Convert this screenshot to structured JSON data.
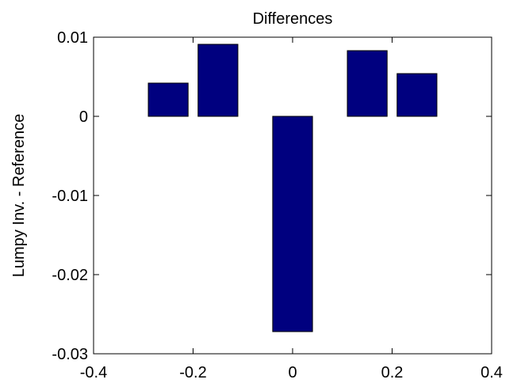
{
  "chart_data": {
    "type": "bar",
    "title": "Differences",
    "xlabel": "",
    "ylabel": "Lumpy Inv. - Reference",
    "x": [
      -0.25,
      -0.15,
      0.0,
      0.15,
      0.25
    ],
    "values": [
      0.0042,
      0.0091,
      -0.0272,
      0.0083,
      0.0054
    ],
    "bar_width_data": 0.08,
    "xlim": [
      -0.4,
      0.4
    ],
    "ylim": [
      -0.03,
      0.01
    ],
    "xticks": [
      -0.4,
      -0.2,
      0,
      0.2,
      0.4
    ],
    "xtick_labels": [
      "-0.4",
      "-0.2",
      "0",
      "0.2",
      "0.4"
    ],
    "yticks": [
      -0.03,
      -0.02,
      -0.01,
      0,
      0.01
    ],
    "ytick_labels": [
      "-0.03",
      "-0.02",
      "-0.01",
      "0",
      "0.01"
    ],
    "grid": false,
    "legend": "none",
    "colors": {
      "bar_fill": "#00007f",
      "bar_edge": "#000000",
      "axes": "#000000",
      "background": "#ffffff"
    }
  }
}
